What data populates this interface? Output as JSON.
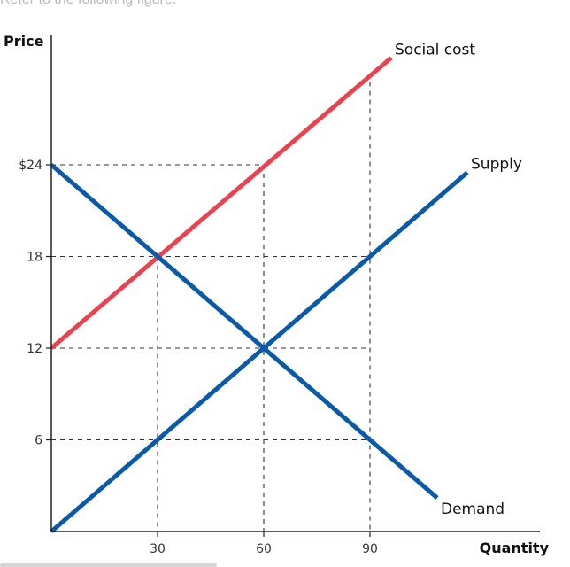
{
  "caption": "Refer to the following figure.",
  "chart_data": {
    "type": "line",
    "title": "",
    "xlabel": "Quantity",
    "ylabel": "Price",
    "xlim": [
      0,
      120
    ],
    "ylim": [
      0,
      28
    ],
    "x_ticks": [
      {
        "value": 30,
        "label": "30"
      },
      {
        "value": 60,
        "label": "60"
      },
      {
        "value": 90,
        "label": "90"
      }
    ],
    "y_ticks": [
      {
        "value": 6,
        "label": "6"
      },
      {
        "value": 12,
        "label": "12"
      },
      {
        "value": 18,
        "label": "18"
      },
      {
        "value": 24,
        "label": "$24"
      }
    ],
    "grid": "dashed guide lines",
    "series": [
      {
        "name": "Social cost",
        "color": "#e8434f",
        "points": [
          [
            0,
            12
          ],
          [
            96,
            31
          ]
        ]
      },
      {
        "name": "Supply",
        "color": "#0a5aa8",
        "points": [
          [
            0,
            0
          ],
          [
            117.5,
            23.5
          ]
        ]
      },
      {
        "name": "Demand",
        "color": "#0a5aa8",
        "points": [
          [
            0,
            24
          ],
          [
            109,
            2.2
          ]
        ]
      }
    ],
    "guides": [
      {
        "from": [
          0,
          24
        ],
        "to": [
          60,
          24
        ]
      },
      {
        "from": [
          60,
          24
        ],
        "to": [
          60,
          0
        ]
      },
      {
        "from": [
          0,
          18
        ],
        "to": [
          90,
          18
        ]
      },
      {
        "from": [
          30,
          18
        ],
        "to": [
          30,
          0
        ]
      },
      {
        "from": [
          0,
          12
        ],
        "to": [
          90,
          12
        ]
      },
      {
        "from": [
          0,
          6
        ],
        "to": [
          90,
          6
        ]
      },
      {
        "from": [
          90,
          30
        ],
        "to": [
          90,
          0
        ]
      }
    ]
  }
}
